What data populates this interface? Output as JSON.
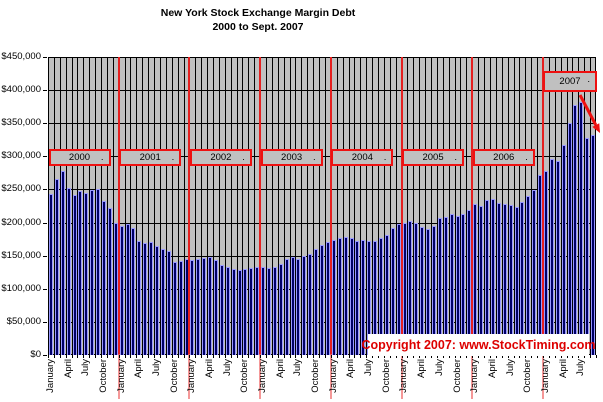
{
  "title": {
    "line1": "New York Stock Exchange Margin Debt",
    "line2": "2000 to Sept. 2007"
  },
  "copyright": "Copyright 2007: www.StockTiming.com",
  "colors": {
    "bar_fill": "#000066",
    "bar_border": "#9999ff",
    "plot_background": "#c0c0c0",
    "gridline": "#000000",
    "annotation_red": "#ee1111",
    "copyright_text_red": "#dd0000"
  },
  "chart_data": {
    "type": "bar",
    "title": "New York Stock Exchange Margin Debt 2000 to Sept. 2007",
    "xlabel": "",
    "ylabel": "",
    "ylim": [
      0,
      450000
    ],
    "ytick_interval": 50000,
    "ytick_labels": [
      "$0",
      "$50,000",
      "$100,000",
      "$150,000",
      "$200,000",
      "$250,000",
      "$300,000",
      "$350,000",
      "$400,000",
      "$450,000"
    ],
    "grid": "on",
    "x_start_month": "January 2000",
    "x_end_month": "September 2007",
    "xtick_label_pattern": [
      "January",
      "April",
      "July",
      "October"
    ],
    "year_boxes": [
      "2000",
      "2001",
      "2002",
      "2003",
      "2004",
      "2005",
      "2006",
      "2007"
    ],
    "year_box_dot": ".",
    "annotations": {
      "red_year_boundary_lines": true,
      "arrow_from_2007_box_to_last_bar": true
    },
    "series": [
      {
        "name": "NYSE Margin Debt ($)",
        "values": [
          243500,
          265200,
          278500,
          251700,
          241000,
          247800,
          244700,
          249400,
          250100,
          233200,
          222000,
          198800,
          195000,
          198000,
          192000,
          172500,
          169000,
          171000,
          165000,
          160000,
          157500,
          140000,
          141500,
          145000,
          143500,
          145000,
          146500,
          147500,
          143500,
          136500,
          133500,
          130500,
          128500,
          129500,
          131500,
          132500,
          133500,
          131500,
          133500,
          137500,
          145000,
          147500,
          145000,
          150000,
          152500,
          160000,
          166000,
          170000,
          173500,
          176500,
          178500,
          176500,
          172500,
          173500,
          171500,
          172500,
          176500,
          181500,
          191500,
          198500,
          200000,
          202500,
          199000,
          193500,
          191000,
          195000,
          206500,
          208500,
          213500,
          210000,
          213500,
          218500,
          228500,
          225000,
          234000,
          236000,
          230000,
          227500,
          226500,
          223500,
          231500,
          240000,
          248500,
          272500,
          278000,
          296500,
          292500,
          316500,
          350000,
          377500,
          381500,
          327500,
          331500
        ]
      }
    ]
  }
}
